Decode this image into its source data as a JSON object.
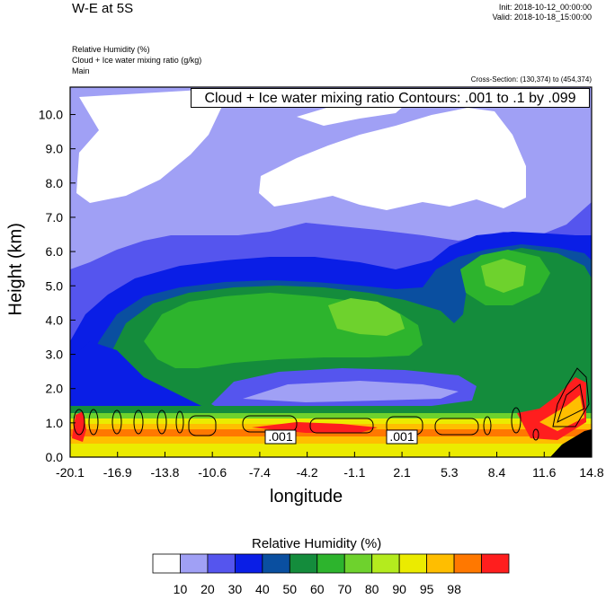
{
  "header": {
    "title": "W-E at 5S",
    "init": "Init: 2018-10-12_00:00:00",
    "valid": "Valid: 2018-10-18_15:00:00",
    "variables": [
      "Relative Humidity   (%)",
      "Cloud + Ice water mixing ratio   (g/kg)",
      "Main"
    ],
    "cross_section": "Cross-Section: (130,374) to (454,374)",
    "contour_info": "Cloud + Ice water mixing ratio Contours: .001 to .1 by .099"
  },
  "chart_data": {
    "type": "heatmap",
    "title": "W-E at 5S",
    "xlabel": "longitude",
    "ylabel": "Height (km)",
    "xlim": [
      -20.1,
      14.8
    ],
    "ylim": [
      0.0,
      10.8
    ],
    "x_ticks": [
      "-20.1",
      "-16.9",
      "-13.8",
      "-10.6",
      "-7.4",
      "-4.2",
      "-1.1",
      "2.1",
      "5.3",
      "8.4",
      "11.6",
      "14.8"
    ],
    "y_ticks": [
      "0.0",
      "1.0",
      "2.0",
      "3.0",
      "4.0",
      "5.0",
      "6.0",
      "7.0",
      "8.0",
      "9.0",
      "10.0"
    ],
    "contour_labels": [
      ".001",
      ".001"
    ],
    "colorbar": {
      "title": "Relative Humidity  (%)",
      "levels": [
        "10",
        "20",
        "30",
        "40",
        "50",
        "60",
        "70",
        "80",
        "90",
        "95",
        "98"
      ],
      "colors": [
        "#ffffff",
        "#a0a0f5",
        "#5555ee",
        "#0a1ee6",
        "#0a4fa0",
        "#148c3c",
        "#2db42d",
        "#6ed22d",
        "#b4eb1e",
        "#ebeb00",
        "#ffbe00",
        "#ff7800",
        "#ff1e1e"
      ]
    }
  }
}
